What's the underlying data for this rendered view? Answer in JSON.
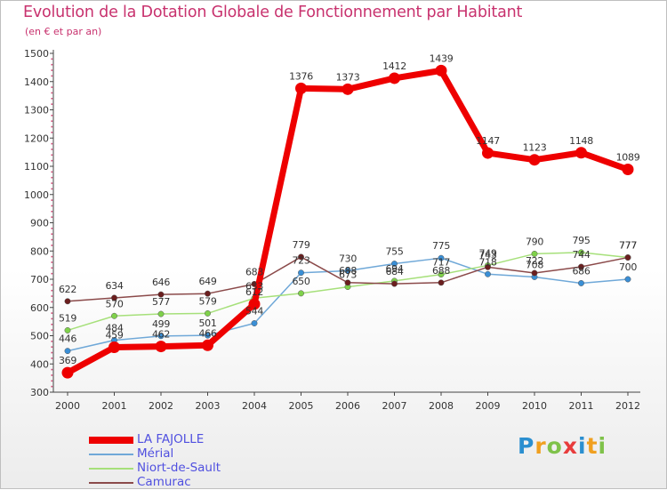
{
  "title": "Evolution de la Dotation Globale de Fonctionnement par Habitant",
  "subtitle": "(en € et par an)",
  "logo": {
    "text": "Proxiti",
    "letters": [
      "P",
      "r",
      "o",
      "x",
      "i",
      "t",
      "i"
    ]
  },
  "colors": {
    "title": "#c8326e",
    "legend_text": "#5050e0",
    "axis": "#333333"
  },
  "chart_data": {
    "type": "line",
    "title": "Evolution de la Dotation Globale de Fonctionnement par Habitant",
    "subtitle": "(en € et par an)",
    "xlabel": "",
    "ylabel": "",
    "ylim": [
      300,
      1500
    ],
    "yticks": [
      300,
      400,
      500,
      600,
      700,
      800,
      900,
      1000,
      1100,
      1200,
      1300,
      1400,
      1500
    ],
    "x": [
      "2000",
      "2001",
      "2002",
      "2003",
      "2004",
      "2005",
      "2006",
      "2007",
      "2008",
      "2009",
      "2010",
      "2011",
      "2012"
    ],
    "legend_position": "bottom-left",
    "series": [
      {
        "name": "Mérial",
        "color": "#6fa8d8",
        "marker": "#3a8fd6",
        "width": 1.5,
        "values": [
          446,
          484,
          499,
          501,
          544,
          723,
          730,
          755,
          775,
          718,
          708,
          686,
          700
        ],
        "labels": [
          "446",
          "484",
          "499",
          "501",
          "544",
          "723",
          "730",
          "755",
          "775",
          "718",
          "708",
          "686",
          "700"
        ]
      },
      {
        "name": "Niort-de-Sault",
        "color": "#a6e07a",
        "marker": "#7fd14a",
        "width": 1.5,
        "values": [
          519,
          570,
          577,
          579,
          633,
          650,
          673,
          694,
          717,
          749,
          790,
          795,
          777
        ],
        "labels": [
          "519",
          "570",
          "577",
          "579",
          "633",
          "650",
          "673",
          "694",
          "717",
          "749",
          "790",
          "795",
          "777"
        ]
      },
      {
        "name": "Camurac",
        "color": "#8b4a4a",
        "marker": "#6b1e1e",
        "width": 1.5,
        "values": [
          622,
          634,
          646,
          649,
          683,
          779,
          688,
          684,
          688,
          743,
          722,
          744,
          777
        ],
        "labels": [
          "622",
          "634",
          "646",
          "649",
          "683",
          "779",
          "688",
          "684",
          "688",
          "743",
          "722",
          "744",
          "777"
        ]
      },
      {
        "name": "LA FAJOLLE",
        "color": "#ee0000",
        "marker": "#ee0000",
        "width": 7,
        "values": [
          369,
          459,
          462,
          466,
          612,
          1376,
          1373,
          1412,
          1439,
          1147,
          1123,
          1148,
          1089
        ],
        "labels": [
          "369",
          "459",
          "462",
          "466",
          "612",
          "1376",
          "1373",
          "1412",
          "1439",
          "1147",
          "1123",
          "1148",
          "1089"
        ]
      }
    ]
  },
  "legend": [
    {
      "label": "LA FAJOLLE",
      "color": "#ee0000",
      "thickness": "thick"
    },
    {
      "label": "Mérial",
      "color": "#6fa8d8",
      "thickness": "thin"
    },
    {
      "label": "Niort-de-Sault",
      "color": "#a6e07a",
      "thickness": "thin"
    },
    {
      "label": "Camurac",
      "color": "#8b4a4a",
      "thickness": "thin"
    }
  ]
}
